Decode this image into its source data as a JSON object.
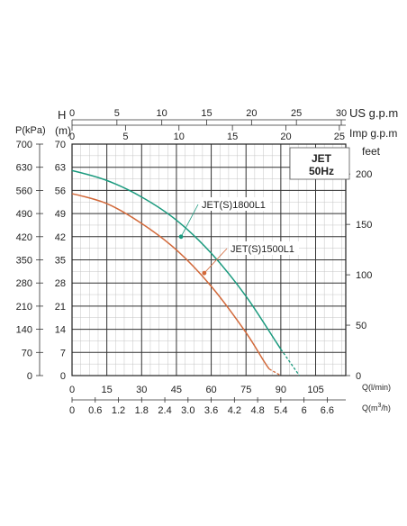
{
  "chart_data": {
    "type": "line",
    "badge": {
      "line1": "JET",
      "line2": "50Hz"
    },
    "axes": {
      "pressure_kpa": {
        "title": "P(kPa)",
        "ticks": [
          "0",
          "70",
          "140",
          "210",
          "280",
          "350",
          "420",
          "490",
          "560",
          "630",
          "700"
        ],
        "range": [
          0,
          700
        ]
      },
      "head_m": {
        "title_line1": "H",
        "title_line2": "(m)",
        "ticks": [
          "0",
          "7",
          "14",
          "21",
          "28",
          "35",
          "42",
          "49",
          "56",
          "63",
          "70"
        ],
        "range": [
          0,
          70
        ]
      },
      "head_feet": {
        "title": "feet",
        "ticks": [
          "0",
          "50",
          "100",
          "150",
          "200"
        ],
        "values": [
          0,
          50,
          100,
          150,
          200
        ]
      },
      "flow_l_min": {
        "title": "Q(l/min)",
        "ticks": [
          "0",
          "15",
          "30",
          "45",
          "60",
          "75",
          "90",
          "105"
        ],
        "range": [
          0,
          118
        ]
      },
      "flow_m3_h": {
        "title_main": "Q(m",
        "title_sup": "3",
        "title_end": "/h)",
        "ticks": [
          "0",
          "0.6",
          "1.2",
          "1.8",
          "2.4",
          "3.0",
          "3.6",
          "4.2",
          "4.8",
          "5.4",
          "6",
          "6.6"
        ]
      },
      "flow_us_gpm": {
        "title": "US g.p.m",
        "ticks": [
          "0",
          "5",
          "10",
          "15",
          "20",
          "25",
          "30"
        ]
      },
      "flow_imp_gpm": {
        "title": "Imp g.p.m",
        "ticks": [
          "0",
          "5",
          "10",
          "15",
          "20",
          "25"
        ]
      }
    },
    "grid": true,
    "series": [
      {
        "name": "JET(S)1800L1",
        "color": "#1a9a7e",
        "x": [
          0,
          15,
          30,
          45,
          60,
          75,
          90,
          98
        ],
        "y": [
          62,
          59,
          54,
          47,
          37,
          24,
          8,
          0
        ]
      },
      {
        "name": "JET(S)1500L1",
        "color": "#d2693a",
        "x": [
          0,
          15,
          30,
          45,
          60,
          75,
          85,
          90
        ],
        "y": [
          55,
          52,
          46,
          38,
          27,
          13,
          2,
          0
        ]
      }
    ],
    "markers": [
      {
        "series": 0,
        "x": 47,
        "y": 42
      },
      {
        "series": 1,
        "x": 57,
        "y": 31
      }
    ]
  }
}
